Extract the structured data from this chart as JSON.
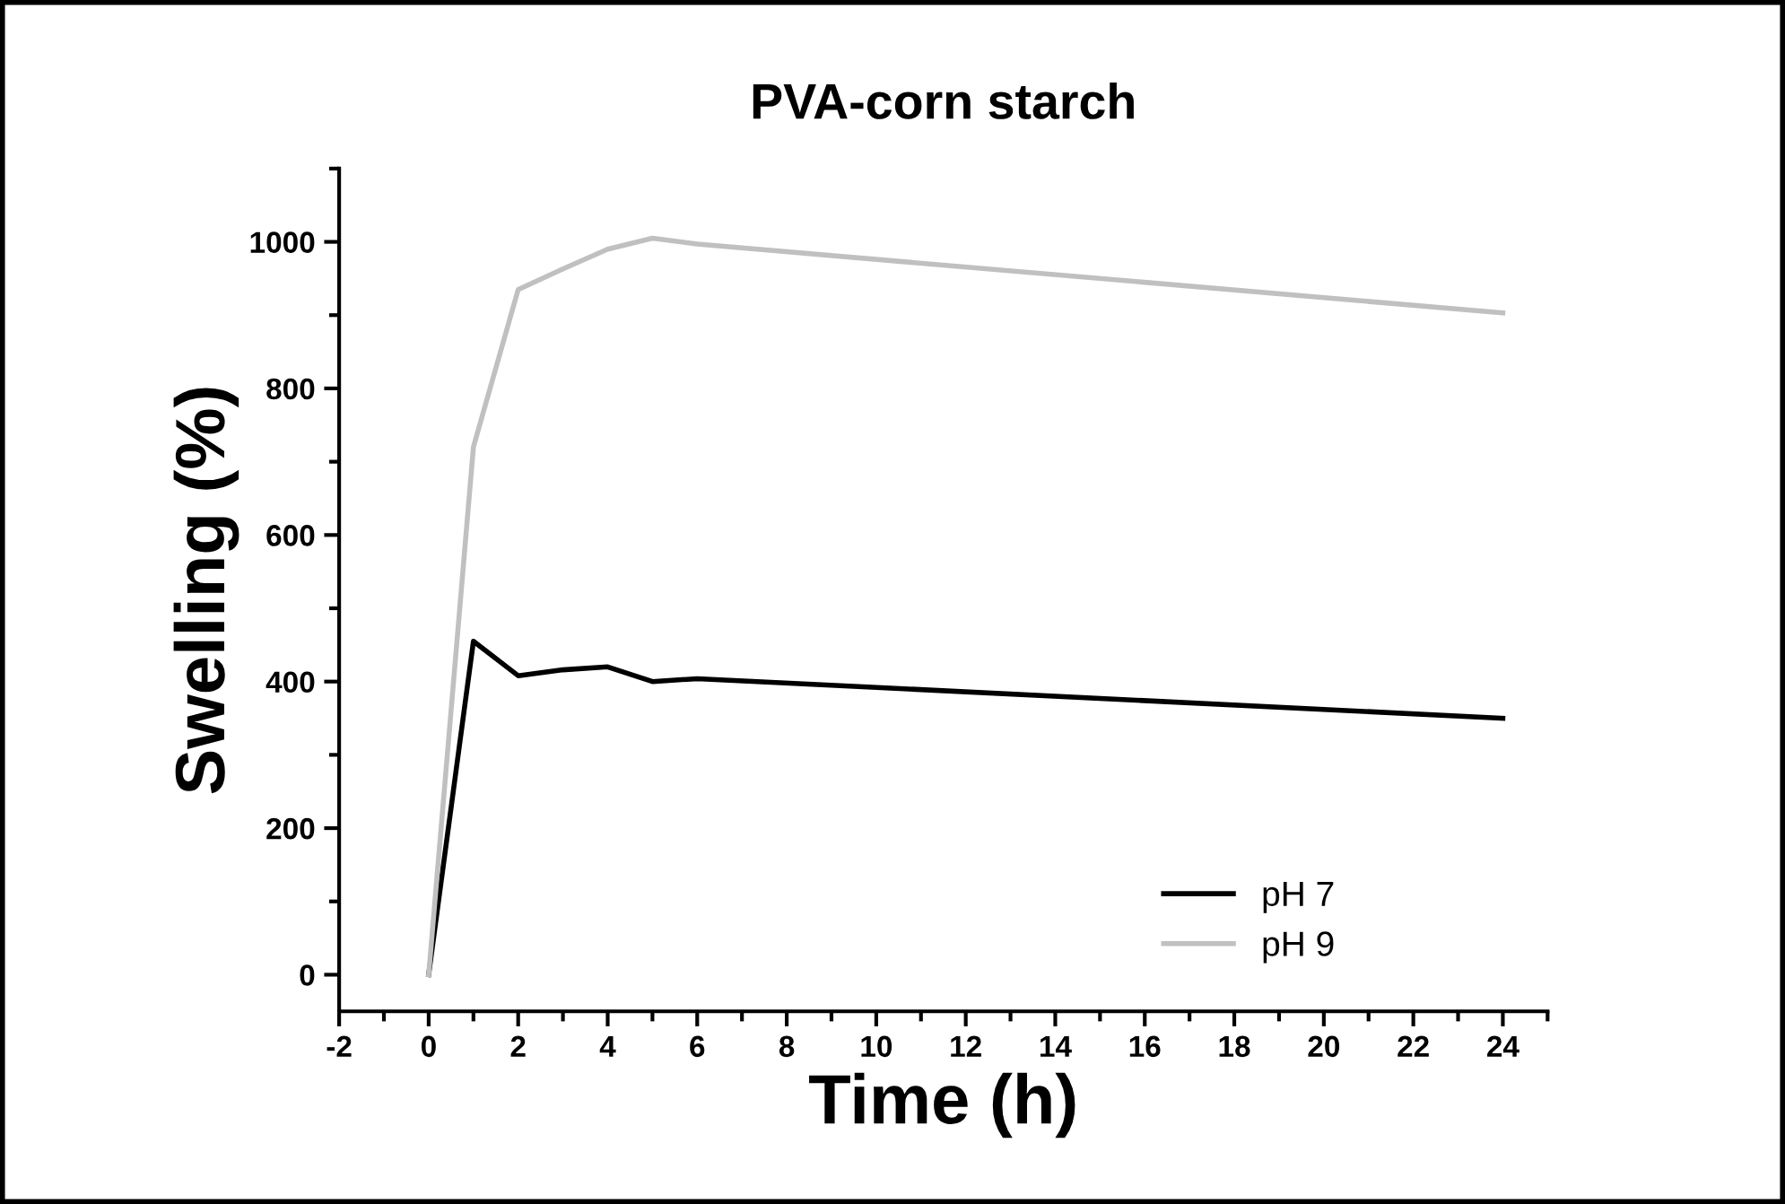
{
  "chart_data": {
    "type": "line",
    "title": "PVA-corn starch",
    "xlabel": "Time (h)",
    "ylabel": "Swelling (%)",
    "series": [
      {
        "name": "pH 7",
        "color": "#000000",
        "x": [
          0,
          1,
          2,
          3,
          4,
          5,
          6,
          24
        ],
        "values": [
          0,
          455,
          408,
          416,
          420,
          400,
          404,
          350
        ]
      },
      {
        "name": "pH 9",
        "color": "#c0c0c0",
        "x": [
          0,
          1,
          2,
          3,
          4,
          5,
          6,
          24
        ],
        "values": [
          0,
          720,
          935,
          963,
          990,
          1005,
          997,
          903
        ]
      }
    ],
    "xlim": [
      -2,
      25
    ],
    "xticks": [
      -2,
      0,
      2,
      4,
      6,
      8,
      10,
      12,
      14,
      16,
      18,
      20,
      22,
      24
    ],
    "ylim": [
      -50,
      1100
    ],
    "yticks": [
      0,
      200,
      400,
      600,
      800,
      1000
    ],
    "grid": false,
    "legend": "bottom right",
    "marker": "none",
    "line_style": "solid"
  }
}
